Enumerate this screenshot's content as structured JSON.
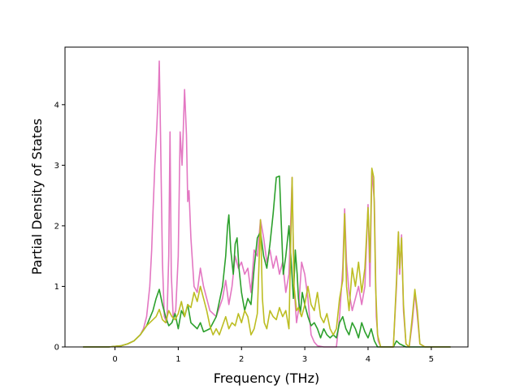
{
  "chart_data": {
    "type": "line",
    "title": "",
    "xlabel": "Frequency (THz)",
    "ylabel": "Partial Density of States",
    "xlim": [
      -0.79,
      5.58
    ],
    "ylim": [
      0,
      4.95
    ],
    "xticks": [
      0,
      1,
      2,
      3,
      4,
      5
    ],
    "yticks": [
      0,
      1,
      2,
      3,
      4
    ],
    "grid": false,
    "legend": "none",
    "series": [
      {
        "color": "#e377c2",
        "points": [
          [
            -0.5,
            0
          ],
          [
            -0.1,
            0
          ],
          [
            0.1,
            0.02
          ],
          [
            0.2,
            0.05
          ],
          [
            0.3,
            0.1
          ],
          [
            0.4,
            0.2
          ],
          [
            0.45,
            0.3
          ],
          [
            0.5,
            0.5
          ],
          [
            0.55,
            1.0
          ],
          [
            0.58,
            1.6
          ],
          [
            0.6,
            2.2
          ],
          [
            0.63,
            3.0
          ],
          [
            0.66,
            3.6
          ],
          [
            0.69,
            4.3
          ],
          [
            0.7,
            4.72
          ],
          [
            0.72,
            3.5
          ],
          [
            0.75,
            1.4
          ],
          [
            0.78,
            0.5
          ],
          [
            0.82,
            0.4
          ],
          [
            0.85,
            1.5
          ],
          [
            0.87,
            3.55
          ],
          [
            0.89,
            1.2
          ],
          [
            0.92,
            0.5
          ],
          [
            0.96,
            0.6
          ],
          [
            1.0,
            1.5
          ],
          [
            1.03,
            3.55
          ],
          [
            1.06,
            3.0
          ],
          [
            1.08,
            3.6
          ],
          [
            1.1,
            4.25
          ],
          [
            1.13,
            3.5
          ],
          [
            1.15,
            2.4
          ],
          [
            1.17,
            2.58
          ],
          [
            1.2,
            1.8
          ],
          [
            1.25,
            1.0
          ],
          [
            1.3,
            0.9
          ],
          [
            1.35,
            1.3
          ],
          [
            1.4,
            1.0
          ],
          [
            1.5,
            0.6
          ],
          [
            1.6,
            0.5
          ],
          [
            1.7,
            0.8
          ],
          [
            1.75,
            1.1
          ],
          [
            1.8,
            0.7
          ],
          [
            1.85,
            1.0
          ],
          [
            1.9,
            1.5
          ],
          [
            1.95,
            1.3
          ],
          [
            2.0,
            1.4
          ],
          [
            2.05,
            1.2
          ],
          [
            2.1,
            1.3
          ],
          [
            2.15,
            0.9
          ],
          [
            2.2,
            1.6
          ],
          [
            2.25,
            1.5
          ],
          [
            2.3,
            2.1
          ],
          [
            2.35,
            1.8
          ],
          [
            2.4,
            1.4
          ],
          [
            2.45,
            1.6
          ],
          [
            2.5,
            1.3
          ],
          [
            2.55,
            1.5
          ],
          [
            2.6,
            1.2
          ],
          [
            2.65,
            1.4
          ],
          [
            2.7,
            0.9
          ],
          [
            2.75,
            1.2
          ],
          [
            2.8,
            2.8
          ],
          [
            2.83,
            1.0
          ],
          [
            2.87,
            0.4
          ],
          [
            2.9,
            0.6
          ],
          [
            2.95,
            1.4
          ],
          [
            3.0,
            1.2
          ],
          [
            3.05,
            0.8
          ],
          [
            3.1,
            0.2
          ],
          [
            3.15,
            0.08
          ],
          [
            3.2,
            0.02
          ],
          [
            3.3,
            0.0
          ],
          [
            3.5,
            0.0
          ],
          [
            3.55,
            0.5
          ],
          [
            3.6,
            1.3
          ],
          [
            3.63,
            2.28
          ],
          [
            3.66,
            1.4
          ],
          [
            3.7,
            0.9
          ],
          [
            3.75,
            0.6
          ],
          [
            3.8,
            0.8
          ],
          [
            3.85,
            1.0
          ],
          [
            3.9,
            0.7
          ],
          [
            3.95,
            1.0
          ],
          [
            4.0,
            2.35
          ],
          [
            4.03,
            1.0
          ],
          [
            4.06,
            2.9
          ],
          [
            4.1,
            2.4
          ],
          [
            4.13,
            0.5
          ],
          [
            4.16,
            0.1
          ],
          [
            4.2,
            0.0
          ],
          [
            4.4,
            0.0
          ],
          [
            4.45,
            1.0
          ],
          [
            4.48,
            1.9
          ],
          [
            4.5,
            1.2
          ],
          [
            4.53,
            1.85
          ],
          [
            4.56,
            0.6
          ],
          [
            4.6,
            0.05
          ],
          [
            4.65,
            0.0
          ],
          [
            4.7,
            0.4
          ],
          [
            4.74,
            0.9
          ],
          [
            4.78,
            0.5
          ],
          [
            4.82,
            0.05
          ],
          [
            4.9,
            0.0
          ],
          [
            5.3,
            0.0
          ]
        ]
      },
      {
        "color": "#2ca02c",
        "points": [
          [
            -0.5,
            0
          ],
          [
            -0.1,
            0
          ],
          [
            0.1,
            0.02
          ],
          [
            0.2,
            0.05
          ],
          [
            0.3,
            0.1
          ],
          [
            0.4,
            0.2
          ],
          [
            0.5,
            0.35
          ],
          [
            0.6,
            0.6
          ],
          [
            0.65,
            0.8
          ],
          [
            0.7,
            0.95
          ],
          [
            0.75,
            0.7
          ],
          [
            0.8,
            0.5
          ],
          [
            0.85,
            0.35
          ],
          [
            0.9,
            0.4
          ],
          [
            0.95,
            0.55
          ],
          [
            1.0,
            0.3
          ],
          [
            1.05,
            0.6
          ],
          [
            1.1,
            0.5
          ],
          [
            1.15,
            0.7
          ],
          [
            1.2,
            0.4
          ],
          [
            1.3,
            0.3
          ],
          [
            1.35,
            0.4
          ],
          [
            1.4,
            0.25
          ],
          [
            1.5,
            0.3
          ],
          [
            1.6,
            0.5
          ],
          [
            1.7,
            1.0
          ],
          [
            1.75,
            1.5
          ],
          [
            1.78,
            2.0
          ],
          [
            1.8,
            2.18
          ],
          [
            1.83,
            1.6
          ],
          [
            1.87,
            1.2
          ],
          [
            1.9,
            1.7
          ],
          [
            1.93,
            1.8
          ],
          [
            1.96,
            1.3
          ],
          [
            2.0,
            0.9
          ],
          [
            2.05,
            0.6
          ],
          [
            2.1,
            0.8
          ],
          [
            2.15,
            0.7
          ],
          [
            2.2,
            1.3
          ],
          [
            2.25,
            1.8
          ],
          [
            2.3,
            1.9
          ],
          [
            2.35,
            1.5
          ],
          [
            2.4,
            1.3
          ],
          [
            2.45,
            1.7
          ],
          [
            2.5,
            2.2
          ],
          [
            2.55,
            2.8
          ],
          [
            2.6,
            2.82
          ],
          [
            2.63,
            2.0
          ],
          [
            2.66,
            1.2
          ],
          [
            2.7,
            1.5
          ],
          [
            2.75,
            2.0
          ],
          [
            2.78,
            1.5
          ],
          [
            2.82,
            0.8
          ],
          [
            2.85,
            1.6
          ],
          [
            2.88,
            1.2
          ],
          [
            2.9,
            0.8
          ],
          [
            2.93,
            0.55
          ],
          [
            2.96,
            0.9
          ],
          [
            3.0,
            0.7
          ],
          [
            3.05,
            0.5
          ],
          [
            3.1,
            0.35
          ],
          [
            3.15,
            0.4
          ],
          [
            3.2,
            0.3
          ],
          [
            3.25,
            0.15
          ],
          [
            3.3,
            0.3
          ],
          [
            3.35,
            0.2
          ],
          [
            3.4,
            0.15
          ],
          [
            3.45,
            0.2
          ],
          [
            3.5,
            0.15
          ],
          [
            3.55,
            0.4
          ],
          [
            3.6,
            0.5
          ],
          [
            3.65,
            0.3
          ],
          [
            3.7,
            0.2
          ],
          [
            3.75,
            0.4
          ],
          [
            3.8,
            0.3
          ],
          [
            3.85,
            0.15
          ],
          [
            3.9,
            0.4
          ],
          [
            3.95,
            0.25
          ],
          [
            4.0,
            0.15
          ],
          [
            4.05,
            0.3
          ],
          [
            4.1,
            0.1
          ],
          [
            4.15,
            0.0
          ],
          [
            4.4,
            0.0
          ],
          [
            4.45,
            0.1
          ],
          [
            4.5,
            0.05
          ],
          [
            4.6,
            0.0
          ],
          [
            5.3,
            0.0
          ]
        ]
      },
      {
        "color": "#bcbd22",
        "points": [
          [
            -0.5,
            0
          ],
          [
            -0.1,
            0
          ],
          [
            0.1,
            0.02
          ],
          [
            0.2,
            0.05
          ],
          [
            0.3,
            0.1
          ],
          [
            0.4,
            0.2
          ],
          [
            0.5,
            0.35
          ],
          [
            0.6,
            0.45
          ],
          [
            0.65,
            0.5
          ],
          [
            0.7,
            0.62
          ],
          [
            0.75,
            0.45
          ],
          [
            0.8,
            0.4
          ],
          [
            0.85,
            0.6
          ],
          [
            0.9,
            0.5
          ],
          [
            0.95,
            0.45
          ],
          [
            1.0,
            0.55
          ],
          [
            1.05,
            0.75
          ],
          [
            1.1,
            0.5
          ],
          [
            1.15,
            0.7
          ],
          [
            1.2,
            0.65
          ],
          [
            1.25,
            0.9
          ],
          [
            1.3,
            0.75
          ],
          [
            1.35,
            1.0
          ],
          [
            1.4,
            0.8
          ],
          [
            1.45,
            0.6
          ],
          [
            1.5,
            0.35
          ],
          [
            1.55,
            0.2
          ],
          [
            1.6,
            0.3
          ],
          [
            1.65,
            0.2
          ],
          [
            1.7,
            0.35
          ],
          [
            1.75,
            0.5
          ],
          [
            1.8,
            0.3
          ],
          [
            1.85,
            0.4
          ],
          [
            1.9,
            0.35
          ],
          [
            1.95,
            0.55
          ],
          [
            2.0,
            0.4
          ],
          [
            2.05,
            0.6
          ],
          [
            2.1,
            0.5
          ],
          [
            2.15,
            0.2
          ],
          [
            2.2,
            0.3
          ],
          [
            2.25,
            0.55
          ],
          [
            2.3,
            2.1
          ],
          [
            2.33,
            0.8
          ],
          [
            2.36,
            0.4
          ],
          [
            2.4,
            0.3
          ],
          [
            2.45,
            0.6
          ],
          [
            2.5,
            0.5
          ],
          [
            2.55,
            0.45
          ],
          [
            2.6,
            0.65
          ],
          [
            2.65,
            0.5
          ],
          [
            2.7,
            0.6
          ],
          [
            2.75,
            0.3
          ],
          [
            2.8,
            2.8
          ],
          [
            2.83,
            1.0
          ],
          [
            2.87,
            0.6
          ],
          [
            2.9,
            0.65
          ],
          [
            2.95,
            0.5
          ],
          [
            3.0,
            0.7
          ],
          [
            3.05,
            1.0
          ],
          [
            3.1,
            0.7
          ],
          [
            3.15,
            0.6
          ],
          [
            3.2,
            0.9
          ],
          [
            3.25,
            0.5
          ],
          [
            3.3,
            0.4
          ],
          [
            3.35,
            0.55
          ],
          [
            3.4,
            0.3
          ],
          [
            3.45,
            0.2
          ],
          [
            3.5,
            0.3
          ],
          [
            3.55,
            0.8
          ],
          [
            3.6,
            1.1
          ],
          [
            3.63,
            2.2
          ],
          [
            3.66,
            1.0
          ],
          [
            3.7,
            0.6
          ],
          [
            3.75,
            1.3
          ],
          [
            3.8,
            1.0
          ],
          [
            3.85,
            1.4
          ],
          [
            3.9,
            0.9
          ],
          [
            3.95,
            1.3
          ],
          [
            4.0,
            2.3
          ],
          [
            4.03,
            1.4
          ],
          [
            4.06,
            2.95
          ],
          [
            4.09,
            2.8
          ],
          [
            4.12,
            1.0
          ],
          [
            4.15,
            0.2
          ],
          [
            4.2,
            0.0
          ],
          [
            4.4,
            0.0
          ],
          [
            4.45,
            1.1
          ],
          [
            4.48,
            1.9
          ],
          [
            4.5,
            1.3
          ],
          [
            4.53,
            1.8
          ],
          [
            4.56,
            0.7
          ],
          [
            4.6,
            0.05
          ],
          [
            4.65,
            0.0
          ],
          [
            4.7,
            0.5
          ],
          [
            4.74,
            0.95
          ],
          [
            4.78,
            0.6
          ],
          [
            4.82,
            0.05
          ],
          [
            4.9,
            0.0
          ],
          [
            5.3,
            0.0
          ]
        ]
      }
    ]
  }
}
